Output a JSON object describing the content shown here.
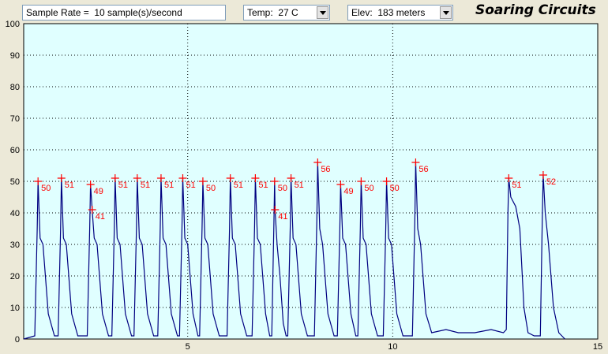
{
  "controls": {
    "sample_rate": "Sample Rate =  10 sample(s)/second",
    "temp": "Temp:  27 C",
    "elev": "Elev:  183 meters",
    "brand": "Soaring Circuits"
  },
  "chart_data": {
    "type": "line",
    "xlim": [
      1,
      15
    ],
    "xticks": [
      5,
      10,
      15
    ],
    "ylim": [
      0,
      100
    ],
    "yticks": [
      0,
      10,
      20,
      30,
      40,
      50,
      60,
      70,
      80,
      90,
      100
    ],
    "grid": true,
    "series": [
      {
        "color": "#000080",
        "x": [
          1.0,
          1.27,
          1.33,
          1.35,
          1.4,
          1.47,
          1.6,
          1.75,
          1.84,
          1.9,
          1.92,
          1.97,
          2.04,
          2.17,
          2.32,
          2.55,
          2.61,
          2.63,
          2.67,
          2.72,
          2.79,
          2.92,
          3.07,
          3.15,
          3.21,
          3.23,
          3.28,
          3.35,
          3.48,
          3.63,
          3.69,
          3.75,
          3.77,
          3.82,
          3.89,
          4.02,
          4.17,
          4.27,
          4.33,
          4.35,
          4.4,
          4.47,
          4.6,
          4.75,
          4.8,
          4.86,
          4.88,
          4.93,
          5.0,
          5.13,
          5.25,
          5.29,
          5.35,
          5.37,
          5.42,
          5.49,
          5.62,
          5.77,
          5.96,
          6.02,
          6.04,
          6.09,
          6.16,
          6.29,
          6.44,
          6.57,
          6.63,
          6.65,
          6.7,
          6.77,
          6.9,
          7.0,
          7.05,
          7.1,
          7.12,
          7.13,
          7.18,
          7.25,
          7.33,
          7.4,
          7.44,
          7.5,
          7.52,
          7.57,
          7.64,
          7.77,
          7.92,
          8.09,
          8.15,
          8.17,
          8.22,
          8.29,
          8.42,
          8.57,
          8.65,
          8.71,
          8.73,
          8.78,
          8.85,
          8.98,
          9.1,
          9.15,
          9.21,
          9.23,
          9.28,
          9.35,
          9.48,
          9.63,
          9.77,
          9.83,
          9.85,
          9.9,
          9.97,
          10.1,
          10.25,
          10.48,
          10.54,
          10.56,
          10.61,
          10.68,
          10.81,
          10.95,
          11.3,
          11.6,
          12.0,
          12.4,
          12.7,
          12.77,
          12.81,
          12.83,
          12.88,
          13.0,
          13.1,
          13.2,
          13.3,
          13.45,
          13.6,
          13.65,
          13.67,
          13.72,
          13.8,
          13.92,
          14.05,
          14.2
        ],
        "values": [
          0,
          1,
          35,
          50,
          32,
          30,
          8,
          1,
          1,
          35,
          51,
          32,
          30,
          8,
          1,
          1,
          35,
          49,
          41,
          32,
          30,
          8,
          1,
          1,
          35,
          51,
          32,
          30,
          8,
          1,
          1,
          35,
          51,
          32,
          30,
          8,
          1,
          1,
          35,
          51,
          32,
          30,
          8,
          1,
          1,
          35,
          51,
          32,
          30,
          8,
          1,
          1,
          35,
          50,
          32,
          30,
          8,
          1,
          1,
          35,
          51,
          32,
          30,
          8,
          1,
          1,
          35,
          51,
          32,
          30,
          8,
          1,
          1,
          35,
          50,
          41,
          30,
          20,
          5,
          1,
          1,
          35,
          51,
          32,
          30,
          8,
          1,
          1,
          38,
          56,
          35,
          30,
          8,
          1,
          1,
          35,
          49,
          32,
          30,
          8,
          1,
          1,
          35,
          50,
          32,
          30,
          8,
          1,
          1,
          35,
          50,
          32,
          30,
          8,
          1,
          1,
          38,
          56,
          35,
          30,
          8,
          2,
          3,
          2,
          2,
          3,
          2,
          3,
          40,
          51,
          45,
          42,
          35,
          10,
          2,
          1,
          1,
          40,
          52,
          40,
          30,
          10,
          2,
          0
        ]
      },
      {
        "color": "#ff0000",
        "marker": "plus",
        "x": [
          1.35,
          1.92,
          2.63,
          2.67,
          3.23,
          3.77,
          4.35,
          4.88,
          5.37,
          6.04,
          6.65,
          7.12,
          7.13,
          7.52,
          8.17,
          8.73,
          9.23,
          9.85,
          10.56,
          12.83,
          13.67
        ],
        "values": [
          50,
          51,
          49,
          41,
          51,
          51,
          51,
          51,
          50,
          51,
          51,
          50,
          41,
          51,
          56,
          49,
          50,
          50,
          56,
          51,
          52
        ]
      }
    ]
  }
}
